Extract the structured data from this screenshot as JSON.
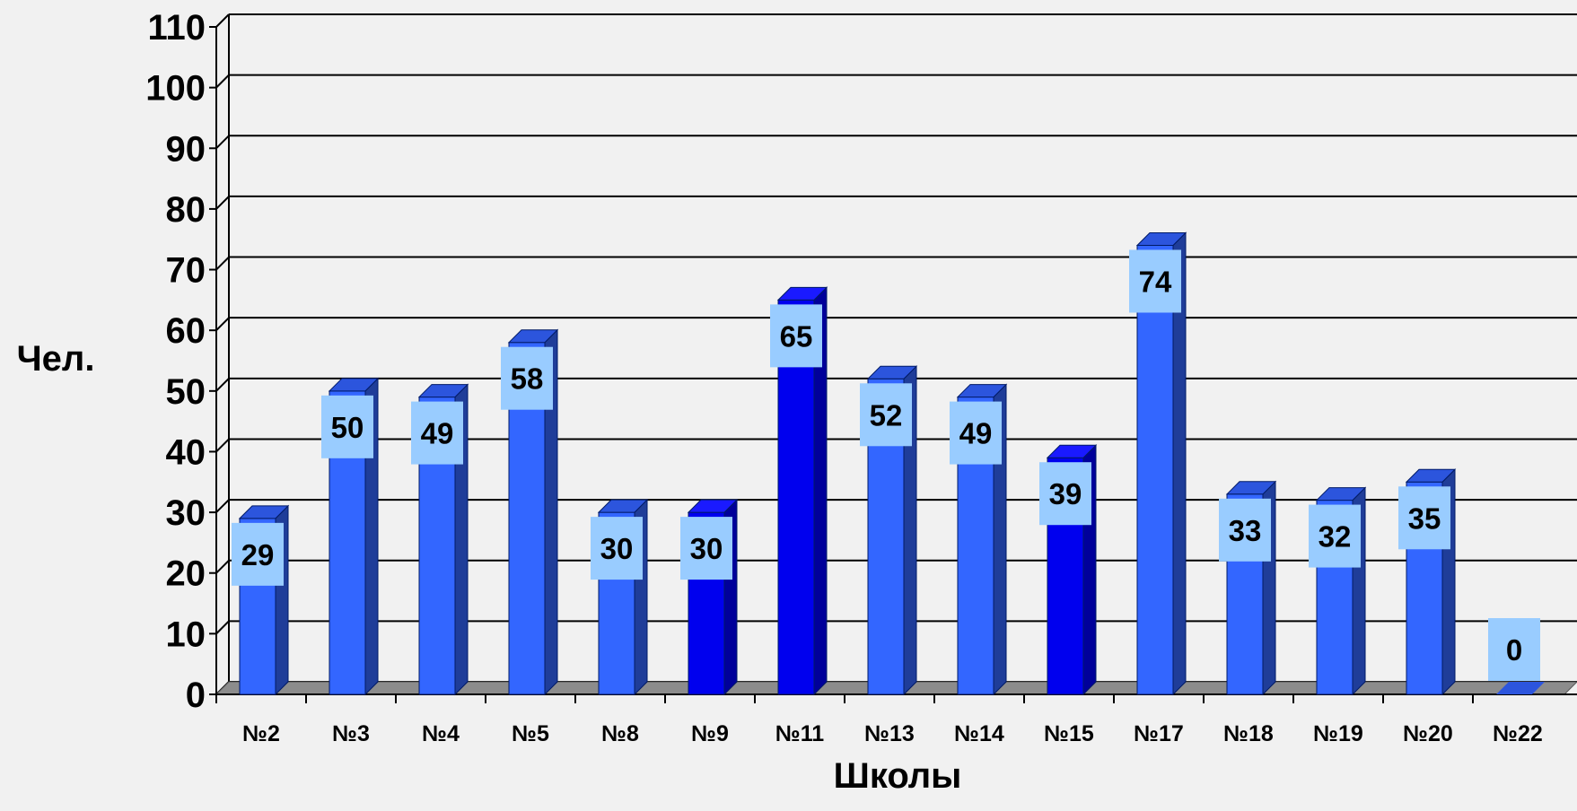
{
  "chart_data": {
    "type": "bar",
    "title": "",
    "xlabel": "Школы",
    "ylabel": "Чел.",
    "ylim": [
      0,
      110
    ],
    "y_ticks": [
      0,
      10,
      20,
      30,
      40,
      50,
      60,
      70,
      80,
      90,
      100,
      110
    ],
    "grid": true,
    "categories": [
      "№2",
      "№3",
      "№4",
      "№5",
      "№8",
      "№9",
      "№11",
      "№13",
      "№14",
      "№15",
      "№17",
      "№18",
      "№19",
      "№20",
      "№22"
    ],
    "values": [
      29,
      50,
      49,
      58,
      30,
      30,
      65,
      52,
      49,
      39,
      74,
      33,
      32,
      35,
      0
    ],
    "colors": {
      "default_bar": "#3366ff",
      "highlight_bar": "#0000ee",
      "data_label_box": "#99ccff",
      "background": "#f1f1f1"
    },
    "highlighted_categories": [
      "№9",
      "№11",
      "№15"
    ]
  }
}
